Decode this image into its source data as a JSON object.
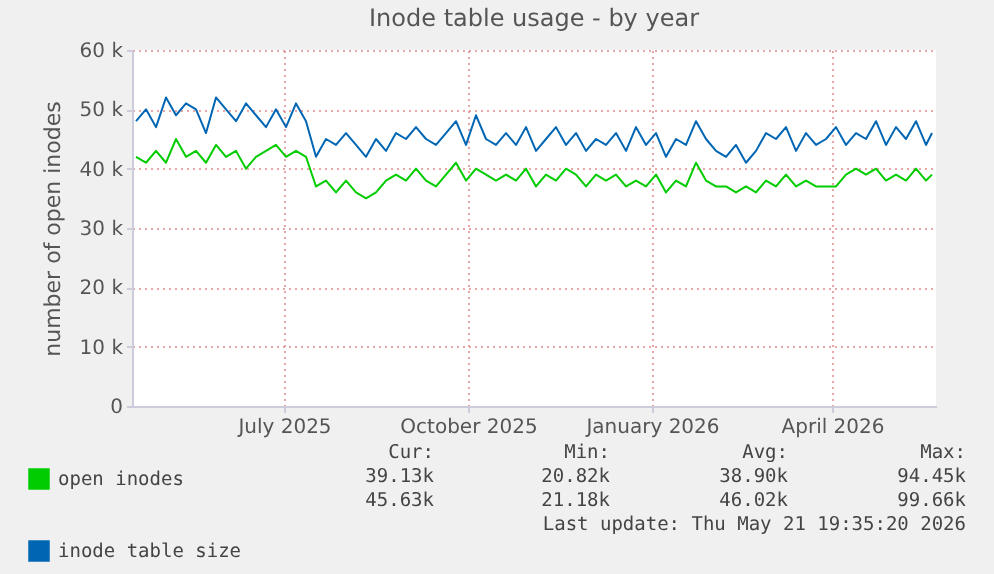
{
  "chart_data": {
    "type": "line",
    "title": "Inode table usage - by year",
    "ylabel": "number of open inodes",
    "x": [
      "2025-04-18",
      "2025-04-23",
      "2025-04-28",
      "2025-05-03",
      "2025-05-08",
      "2025-05-13",
      "2025-05-18",
      "2025-05-23",
      "2025-05-28",
      "2025-06-02",
      "2025-06-07",
      "2025-06-12",
      "2025-06-17",
      "2025-06-22",
      "2025-06-27",
      "2025-07-02",
      "2025-07-07",
      "2025-07-12",
      "2025-07-17",
      "2025-07-22",
      "2025-07-27",
      "2025-08-01",
      "2025-08-06",
      "2025-08-11",
      "2025-08-16",
      "2025-08-21",
      "2025-08-26",
      "2025-08-31",
      "2025-09-05",
      "2025-09-10",
      "2025-09-15",
      "2025-09-20",
      "2025-09-25",
      "2025-09-30",
      "2025-10-05",
      "2025-10-10",
      "2025-10-15",
      "2025-10-20",
      "2025-10-25",
      "2025-10-30",
      "2025-11-04",
      "2025-11-09",
      "2025-11-14",
      "2025-11-19",
      "2025-11-24",
      "2025-11-29",
      "2025-12-04",
      "2025-12-09",
      "2025-12-14",
      "2025-12-19",
      "2025-12-24",
      "2025-12-29",
      "2026-01-03",
      "2026-01-08",
      "2026-01-13",
      "2026-01-18",
      "2026-01-23",
      "2026-01-28",
      "2026-02-02",
      "2026-02-07",
      "2026-02-12",
      "2026-02-17",
      "2026-02-22",
      "2026-02-27",
      "2026-03-04",
      "2026-03-09",
      "2026-03-14",
      "2026-03-19",
      "2026-03-24",
      "2026-03-29",
      "2026-04-03",
      "2026-04-08",
      "2026-04-13",
      "2026-04-18",
      "2026-04-23",
      "2026-04-28",
      "2026-05-03",
      "2026-05-08",
      "2026-05-13",
      "2026-05-18",
      "2026-05-21"
    ],
    "series": [
      {
        "name": "open inodes",
        "color": "#00cc00",
        "values": [
          42000,
          41000,
          43000,
          41000,
          45000,
          42000,
          43000,
          41000,
          44000,
          42000,
          43000,
          40000,
          42000,
          43000,
          44000,
          42000,
          43000,
          42000,
          37000,
          38000,
          36000,
          38000,
          36000,
          35000,
          36000,
          38000,
          39000,
          38000,
          40000,
          38000,
          37000,
          39000,
          41000,
          38000,
          40000,
          39000,
          38000,
          39000,
          38000,
          40000,
          37000,
          39000,
          38000,
          40000,
          39000,
          37000,
          39000,
          38000,
          39000,
          37000,
          38000,
          37000,
          39000,
          36000,
          38000,
          37000,
          41000,
          38000,
          37000,
          37000,
          36000,
          37000,
          36000,
          38000,
          37000,
          39000,
          37000,
          38000,
          37000,
          37000,
          37000,
          39000,
          40000,
          39000,
          40000,
          38000,
          39000,
          38000,
          40000,
          38000,
          39000
        ]
      },
      {
        "name": "inode table size",
        "color": "#0066b3",
        "values": [
          48000,
          50000,
          47000,
          52000,
          49000,
          51000,
          50000,
          46000,
          52000,
          50000,
          48000,
          51000,
          49000,
          47000,
          50000,
          47000,
          51000,
          48000,
          42000,
          45000,
          44000,
          46000,
          44000,
          42000,
          45000,
          43000,
          46000,
          45000,
          47000,
          45000,
          44000,
          46000,
          48000,
          44000,
          49000,
          45000,
          44000,
          46000,
          44000,
          47000,
          43000,
          45000,
          47000,
          44000,
          46000,
          43000,
          45000,
          44000,
          46000,
          43000,
          47000,
          44000,
          46000,
          42000,
          45000,
          44000,
          48000,
          45000,
          43000,
          42000,
          44000,
          41000,
          43000,
          46000,
          45000,
          47000,
          43000,
          46000,
          44000,
          45000,
          47000,
          44000,
          46000,
          45000,
          48000,
          44000,
          47000,
          45000,
          48000,
          44000,
          46000
        ]
      }
    ],
    "xlim": [
      "2025-04-16",
      "2026-05-23"
    ],
    "xticks": [
      {
        "value": "2025-07-01",
        "label": "July 2025"
      },
      {
        "value": "2025-10-01",
        "label": "October 2025"
      },
      {
        "value": "2026-01-01",
        "label": "January 2026"
      },
      {
        "value": "2026-04-01",
        "label": "April 2026"
      }
    ],
    "ylim": [
      0,
      60000
    ],
    "yticks": [
      0,
      {
        "value": 10000,
        "label": "10 k"
      },
      {
        "value": 20000,
        "label": "20 k"
      },
      {
        "value": 30000,
        "label": "30 k"
      },
      {
        "value": 40000,
        "label": "40 k"
      },
      {
        "value": 50000,
        "label": "50 k"
      },
      {
        "value": 60000,
        "label": "60 k"
      }
    ],
    "grid": true,
    "legend": "bottom",
    "line_style": "solid",
    "annotations": [
      "Cur:",
      "Min:",
      "Avg:",
      "Max:",
      "39.13k",
      "20.82k",
      "38.90k",
      "94.45k",
      "45.63k",
      "21.18k",
      "46.02k",
      "99.66k",
      "Last update: Thu May 21 19:35:20 2026"
    ]
  }
}
